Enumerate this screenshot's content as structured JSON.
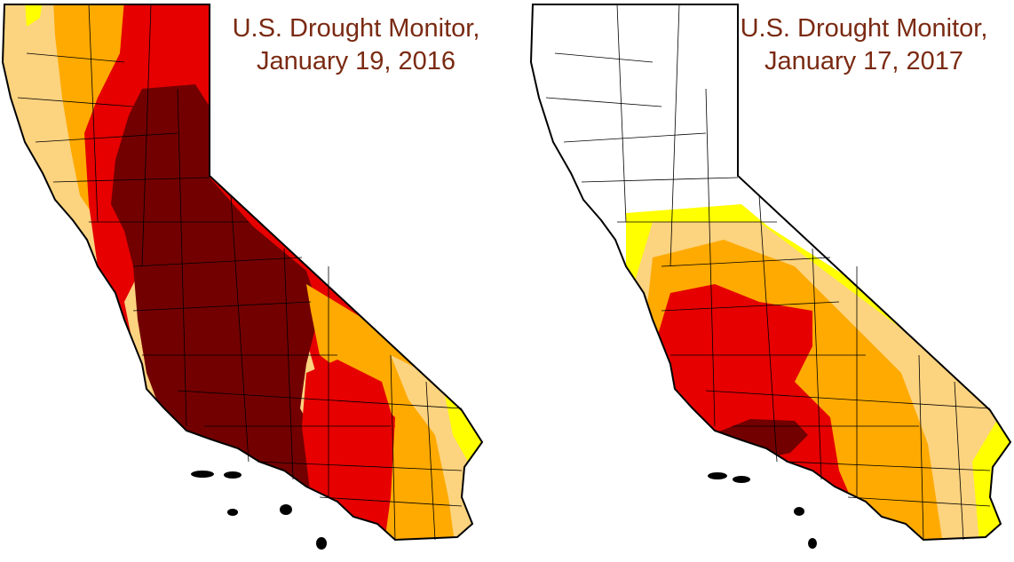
{
  "maps": [
    {
      "title_line1": "U.S. Drought Monitor,",
      "title_line2": "January 19, 2016"
    },
    {
      "title_line1": "U.S. Drought Monitor,",
      "title_line2": "January 17, 2017"
    }
  ],
  "legend_colors": {
    "none": "#ffffff",
    "D0_abnormally_dry": "#ffff00",
    "D1_moderate": "#fcd37f",
    "D2_severe": "#ffaa00",
    "D3_extreme": "#e60000",
    "D4_exceptional": "#730000"
  }
}
